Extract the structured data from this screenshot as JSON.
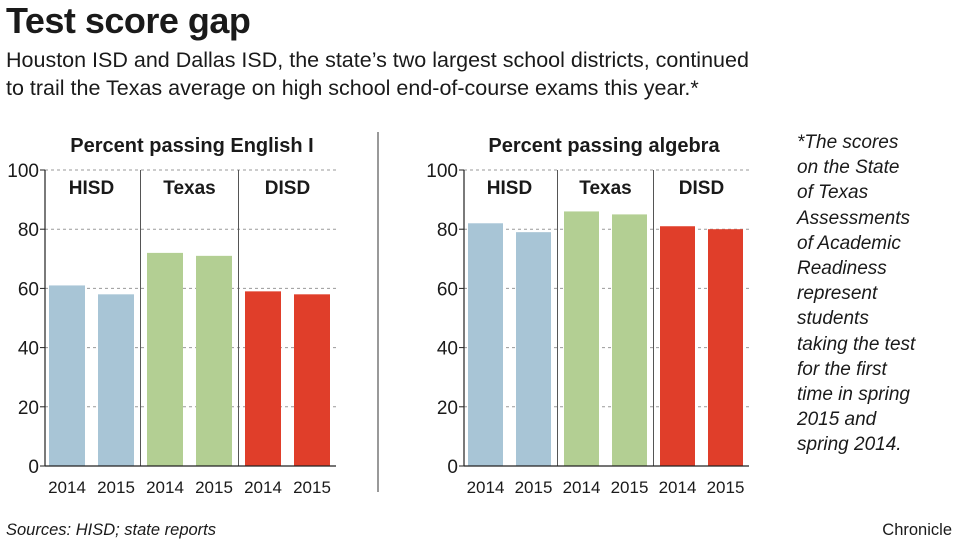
{
  "headline": "Test score gap",
  "subtitle_lines": [
    "Houston ISD and Dallas ISD, the state’s two largest school districts, continued",
    "to trail the Texas average on high school end-of-course exams this year.*"
  ],
  "note_lines": [
    "*The scores",
    "on the State",
    "of Texas",
    "Assessments",
    "of Academic",
    "Readiness",
    "represent",
    "students",
    "taking the test",
    "for the first",
    "time in spring",
    "2015 and",
    "spring 2014."
  ],
  "source": "Sources: HISD; state reports",
  "credit": "Chronicle",
  "colors": {
    "HISD": "#a8c5d6",
    "Texas": "#b3cf93",
    "DISD": "#e03e2a"
  },
  "chart_data": [
    {
      "type": "bar",
      "title": "Percent passing English I",
      "groups": [
        "HISD",
        "Texas",
        "DISD"
      ],
      "categories": [
        "2014",
        "2015",
        "2014",
        "2015",
        "2014",
        "2015"
      ],
      "values": [
        61,
        58,
        72,
        71,
        59,
        58
      ],
      "ylim": [
        0,
        100
      ],
      "yticks": [
        0,
        20,
        40,
        60,
        80,
        100
      ],
      "grid": true
    },
    {
      "type": "bar",
      "title": "Percent passing algebra",
      "groups": [
        "HISD",
        "Texas",
        "DISD"
      ],
      "categories": [
        "2014",
        "2015",
        "2014",
        "2015",
        "2014",
        "2015"
      ],
      "values": [
        82,
        79,
        86,
        85,
        81,
        80
      ],
      "ylim": [
        0,
        100
      ],
      "yticks": [
        0,
        20,
        40,
        60,
        80,
        100
      ],
      "grid": true
    }
  ]
}
